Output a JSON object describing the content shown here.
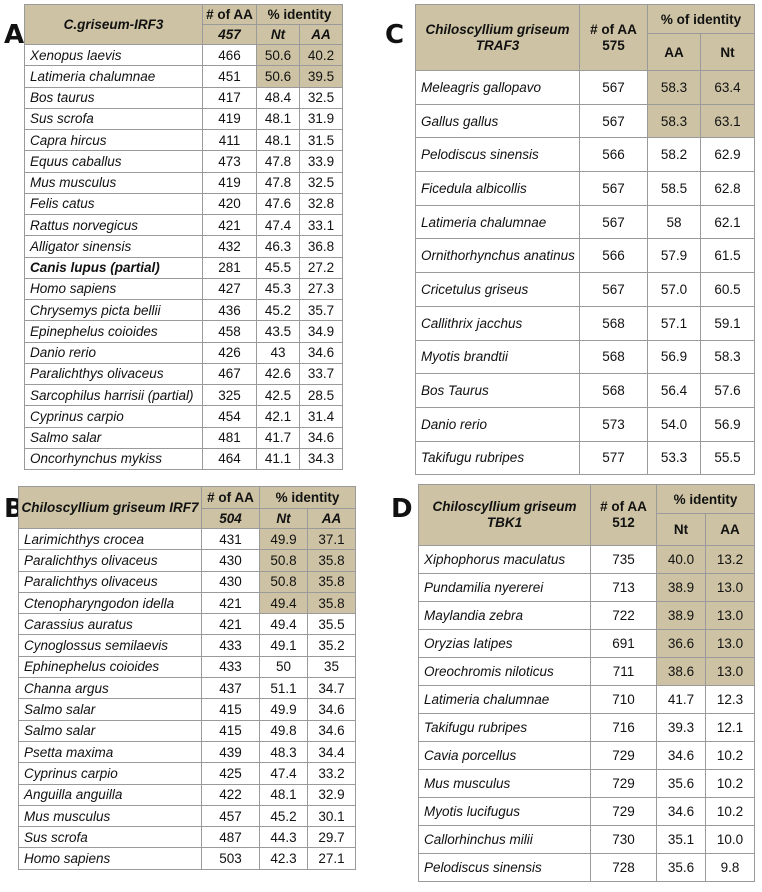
{
  "panels": {
    "A": {
      "letter": "A",
      "header": {
        "title": "C.griseum-IRF3",
        "aa_label": "# of AA",
        "aa_value": "457",
        "identity": "% identity",
        "col1": "Nt",
        "col2": "AA"
      },
      "rows": [
        {
          "species": "Xenopus laevis",
          "aa": "466",
          "c1": "50.6",
          "c2": "40.2",
          "hl": true,
          "bold": false
        },
        {
          "species": "Latimeria chalumnae",
          "aa": "451",
          "c1": "50.6",
          "c2": "39.5",
          "hl": true,
          "bold": false
        },
        {
          "species": "Bos taurus",
          "aa": "417",
          "c1": "48.4",
          "c2": "32.5",
          "hl": false,
          "bold": false
        },
        {
          "species": "Sus scrofa",
          "aa": "419",
          "c1": "48.1",
          "c2": "31.9",
          "hl": false,
          "bold": false
        },
        {
          "species": "Capra hircus",
          "aa": "411",
          "c1": "48.1",
          "c2": "31.5",
          "hl": false,
          "bold": false
        },
        {
          "species": "Equus caballus",
          "aa": "473",
          "c1": "47.8",
          "c2": "33.9",
          "hl": false,
          "bold": false
        },
        {
          "species": "Mus musculus",
          "aa": "419",
          "c1": "47.8",
          "c2": "32.5",
          "hl": false,
          "bold": false
        },
        {
          "species": "Felis catus",
          "aa": "420",
          "c1": "47.6",
          "c2": "32.8",
          "hl": false,
          "bold": false
        },
        {
          "species": "Rattus norvegicus",
          "aa": "421",
          "c1": "47.4",
          "c2": "33.1",
          "hl": false,
          "bold": false
        },
        {
          "species": "Alligator sinensis",
          "aa": "432",
          "c1": "46.3",
          "c2": "36.8",
          "hl": false,
          "bold": false
        },
        {
          "species": "Canis lupus (partial)",
          "aa": "281",
          "c1": "45.5",
          "c2": "27.2",
          "hl": false,
          "bold": true
        },
        {
          "species": "Homo sapiens",
          "aa": "427",
          "c1": "45.3",
          "c2": "27.3",
          "hl": false,
          "bold": false
        },
        {
          "species": "Chrysemys picta bellii",
          "aa": "436",
          "c1": "45.2",
          "c2": "35.7",
          "hl": false,
          "bold": false
        },
        {
          "species": "Epinephelus coioides",
          "aa": "458",
          "c1": "43.5",
          "c2": "34.9",
          "hl": false,
          "bold": false
        },
        {
          "species": "Danio rerio",
          "aa": "426",
          "c1": "43",
          "c2": "34.6",
          "hl": false,
          "bold": false
        },
        {
          "species": "Paralichthys olivaceus",
          "aa": "467",
          "c1": "42.6",
          "c2": "33.7",
          "hl": false,
          "bold": false
        },
        {
          "species": "Sarcophilus harrisii (partial)",
          "aa": "325",
          "c1": "42.5",
          "c2": "28.5",
          "hl": false,
          "bold": false
        },
        {
          "species": "Cyprinus carpio",
          "aa": "454",
          "c1": "42.1",
          "c2": "31.4",
          "hl": false,
          "bold": false
        },
        {
          "species": "Salmo salar",
          "aa": "481",
          "c1": "41.7",
          "c2": "34.6",
          "hl": false,
          "bold": false
        },
        {
          "species": "Oncorhynchus mykiss",
          "aa": "464",
          "c1": "41.1",
          "c2": "34.3",
          "hl": false,
          "bold": false
        }
      ]
    },
    "B": {
      "letter": "B",
      "header": {
        "title": "Chiloscyllium griseum IRF7",
        "aa_label": "# of AA",
        "aa_value": "504",
        "identity": "% identity",
        "col1": "Nt",
        "col2": "AA"
      },
      "rows": [
        {
          "species": "Larimichthys crocea",
          "aa": "431",
          "c1": "49.9",
          "c2": "37.1",
          "hl": true
        },
        {
          "species": "Paralichthys olivaceus",
          "aa": "430",
          "c1": "50.8",
          "c2": "35.8",
          "hl": true
        },
        {
          "species": "Paralichthys olivaceus",
          "aa": "430",
          "c1": "50.8",
          "c2": "35.8",
          "hl": true
        },
        {
          "species": "Ctenopharyngodon idella",
          "aa": "421",
          "c1": "49.4",
          "c2": "35.8",
          "hl": true
        },
        {
          "species": "Carassius auratus",
          "aa": "421",
          "c1": "49.4",
          "c2": "35.5",
          "hl": false
        },
        {
          "species": "Cynoglossus semilaevis",
          "aa": "433",
          "c1": "49.1",
          "c2": "35.2",
          "hl": false
        },
        {
          "species": "Ephinephelus coioides",
          "aa": "433",
          "c1": "50",
          "c2": "35",
          "hl": false
        },
        {
          "species": "Channa argus",
          "aa": "437",
          "c1": "51.1",
          "c2": "34.7",
          "hl": false
        },
        {
          "species": "Salmo salar",
          "aa": "415",
          "c1": "49.9",
          "c2": "34.6",
          "hl": false
        },
        {
          "species": "Salmo salar",
          "aa": "415",
          "c1": "49.8",
          "c2": "34.6",
          "hl": false
        },
        {
          "species": "Psetta maxima",
          "aa": "439",
          "c1": "48.3",
          "c2": "34.4",
          "hl": false
        },
        {
          "species": "Cyprinus carpio",
          "aa": "425",
          "c1": "47.4",
          "c2": "33.2",
          "hl": false
        },
        {
          "species": "Anguilla anguilla",
          "aa": "422",
          "c1": "48.1",
          "c2": "32.9",
          "hl": false
        },
        {
          "species": "Mus musculus",
          "aa": "457",
          "c1": "45.2",
          "c2": "30.1",
          "hl": false
        },
        {
          "species": "Sus scrofa",
          "aa": "487",
          "c1": "44.3",
          "c2": "29.7",
          "hl": false
        },
        {
          "species": "Homo sapiens",
          "aa": "503",
          "c1": "42.3",
          "c2": "27.1",
          "hl": false
        }
      ]
    },
    "C": {
      "letter": "C",
      "header": {
        "title_line1": "Chiloscyllium griseum",
        "title_line2": "TRAF3",
        "aa_label": "# of AA",
        "aa_value": "575",
        "identity": "% of identity",
        "col1": "AA",
        "col2": "Nt"
      },
      "rows": [
        {
          "species": "Meleagris gallopavo",
          "aa": "567",
          "c1": "58.3",
          "c2": "63.4",
          "hl": true
        },
        {
          "species": "Gallus gallus",
          "aa": "567",
          "c1": "58.3",
          "c2": "63.1",
          "hl": true
        },
        {
          "species": "Pelodiscus sinensis",
          "aa": "566",
          "c1": "58.2",
          "c2": "62.9",
          "hl": false
        },
        {
          "species": "Ficedula albicollis",
          "aa": "567",
          "c1": "58.5",
          "c2": "62.8",
          "hl": false
        },
        {
          "species": "Latimeria chalumnae",
          "aa": "567",
          "c1": "58",
          "c2": "62.1",
          "hl": false
        },
        {
          "species": "Ornithorhynchus anatinus",
          "aa": "566",
          "c1": "57.9",
          "c2": "61.5",
          "hl": false
        },
        {
          "species": "Cricetulus griseus",
          "aa": "567",
          "c1": "57.0",
          "c2": "60.5",
          "hl": false
        },
        {
          "species": "Callithrix jacchus",
          "aa": "568",
          "c1": "57.1",
          "c2": "59.1",
          "hl": false
        },
        {
          "species": "Myotis brandtii",
          "aa": "568",
          "c1": "56.9",
          "c2": "58.3",
          "hl": false
        },
        {
          "species": "Bos Taurus",
          "aa": "568",
          "c1": "56.4",
          "c2": "57.6",
          "hl": false
        },
        {
          "species": "Danio rerio",
          "aa": "573",
          "c1": "54.0",
          "c2": "56.9",
          "hl": false
        },
        {
          "species": "Takifugu rubripes",
          "aa": "577",
          "c1": "53.3",
          "c2": "55.5",
          "hl": false
        }
      ]
    },
    "D": {
      "letter": "D",
      "header": {
        "title_line1": "Chiloscyllium griseum",
        "title_line2": "TBK1",
        "aa_label": "# of AA",
        "aa_value": "512",
        "identity": "% identity",
        "col1": "Nt",
        "col2": "AA"
      },
      "rows": [
        {
          "species": "Xiphophorus maculatus",
          "aa": "735",
          "c1": "40.0",
          "c2": "13.2",
          "hl": true
        },
        {
          "species": "Pundamilia nyererei",
          "aa": "713",
          "c1": "38.9",
          "c2": "13.0",
          "hl": true
        },
        {
          "species": "Maylandia zebra",
          "aa": "722",
          "c1": "38.9",
          "c2": "13.0",
          "hl": true
        },
        {
          "species": "Oryzias latipes",
          "aa": "691",
          "c1": "36.6",
          "c2": "13.0",
          "hl": true
        },
        {
          "species": "Oreochromis niloticus",
          "aa": "711",
          "c1": "38.6",
          "c2": "13.0",
          "hl": true
        },
        {
          "species": "Latimeria chalumnae",
          "aa": "710",
          "c1": "41.7",
          "c2": "12.3",
          "hl": false
        },
        {
          "species": "Takifugu rubripes",
          "aa": "716",
          "c1": "39.3",
          "c2": "12.1",
          "hl": false
        },
        {
          "species": "Cavia porcellus",
          "aa": "729",
          "c1": "34.6",
          "c2": "10.2",
          "hl": false
        },
        {
          "species": "Mus musculus",
          "aa": "729",
          "c1": "35.6",
          "c2": "10.2",
          "hl": false
        },
        {
          "species": "Myotis lucifugus",
          "aa": "729",
          "c1": "34.6",
          "c2": "10.2",
          "hl": false
        },
        {
          "species": "Callorhinchus milii",
          "aa": "730",
          "c1": "35.1",
          "c2": "10.0",
          "hl": false
        },
        {
          "species": "Pelodiscus sinensis",
          "aa": "728",
          "c1": "35.6",
          "c2": "9.8",
          "hl": false
        }
      ]
    }
  },
  "colors": {
    "header_bg": "#cdc3a4",
    "highlight_bg": "#cdc3a4",
    "border": "#9a9a9a"
  }
}
